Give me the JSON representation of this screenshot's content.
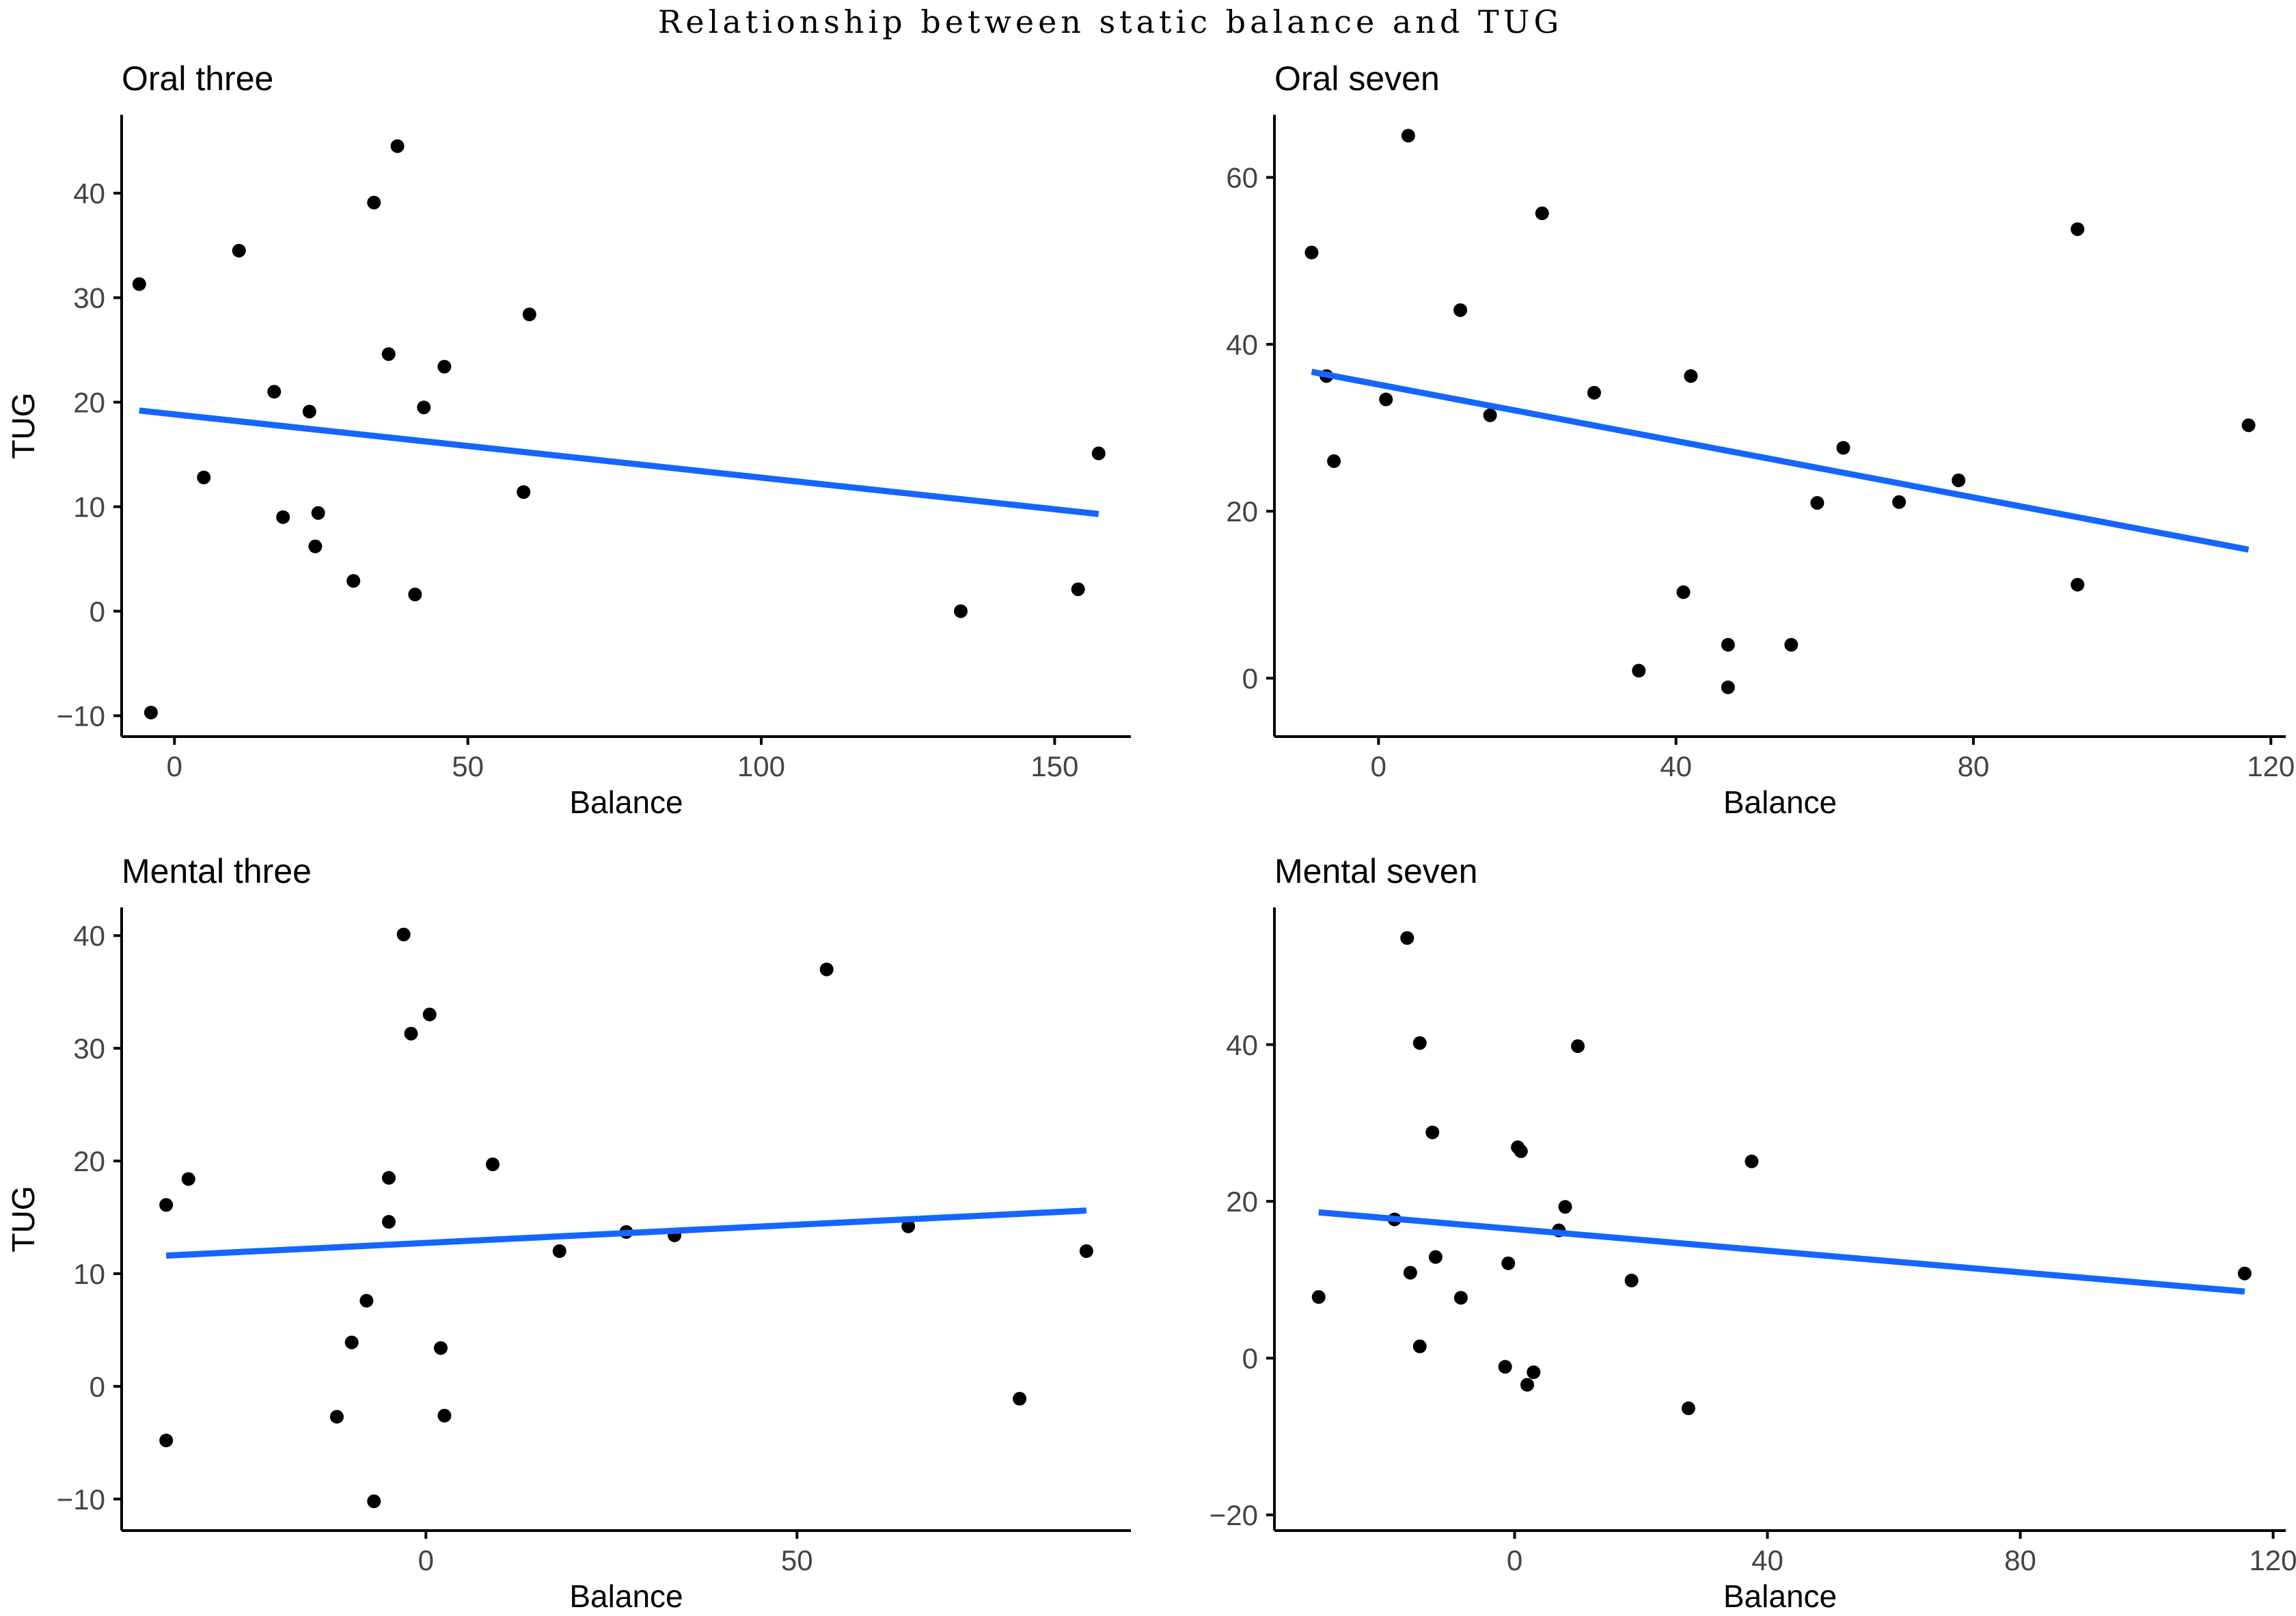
{
  "figure": {
    "title": "Relationship between static balance and TUG"
  },
  "styles": {
    "point_color": "#000000",
    "fit_line_color": "#1565FF",
    "axis_color": "#000000"
  },
  "chart_data": [
    {
      "type": "scatter",
      "title": "Oral three",
      "xlabel": "Balance",
      "ylabel": "TUG",
      "xlim": [
        -9,
        163
      ],
      "ylim": [
        -12,
        47.5
      ],
      "xticks": [
        0,
        50,
        100,
        150
      ],
      "yticks": [
        -10,
        0,
        10,
        20,
        30,
        40
      ],
      "grid": false,
      "points": [
        {
          "x": -6,
          "y": 31.3
        },
        {
          "x": -4,
          "y": -9.7
        },
        {
          "x": 5,
          "y": 12.8
        },
        {
          "x": 11,
          "y": 34.5
        },
        {
          "x": 17,
          "y": 21.0
        },
        {
          "x": 18.5,
          "y": 9.0
        },
        {
          "x": 23,
          "y": 19.1
        },
        {
          "x": 24,
          "y": 6.2
        },
        {
          "x": 24.5,
          "y": 9.4
        },
        {
          "x": 30.5,
          "y": 2.9
        },
        {
          "x": 34,
          "y": 39.1
        },
        {
          "x": 36.5,
          "y": 24.6
        },
        {
          "x": 38,
          "y": 44.5
        },
        {
          "x": 41,
          "y": 1.6
        },
        {
          "x": 42.5,
          "y": 19.5
        },
        {
          "x": 46,
          "y": 23.4
        },
        {
          "x": 59.5,
          "y": 11.4
        },
        {
          "x": 60.5,
          "y": 28.4
        },
        {
          "x": 134,
          "y": 0.0
        },
        {
          "x": 154,
          "y": 2.1
        },
        {
          "x": 157.5,
          "y": 15.1
        }
      ],
      "fit": {
        "x": [
          -6,
          157.5
        ],
        "y": [
          19.2,
          9.3
        ]
      }
    },
    {
      "type": "scatter",
      "title": "Oral seven",
      "xlabel": "Balance",
      "ylabel": "TUG",
      "xlim": [
        -14,
        122
      ],
      "ylim": [
        -7,
        67.5
      ],
      "xticks": [
        0,
        40,
        80,
        120
      ],
      "yticks": [
        0,
        20,
        40,
        60
      ],
      "grid": false,
      "points": [
        {
          "x": -9,
          "y": 51.0
        },
        {
          "x": -7,
          "y": 36.2
        },
        {
          "x": -6,
          "y": 26.0
        },
        {
          "x": 1,
          "y": 33.4
        },
        {
          "x": 4,
          "y": 65.0
        },
        {
          "x": 11,
          "y": 44.1
        },
        {
          "x": 15,
          "y": 31.5
        },
        {
          "x": 22,
          "y": 55.7
        },
        {
          "x": 29,
          "y": 34.2
        },
        {
          "x": 35,
          "y": 0.9
        },
        {
          "x": 41,
          "y": 10.3
        },
        {
          "x": 42,
          "y": 36.2
        },
        {
          "x": 47,
          "y": 4.0
        },
        {
          "x": 47,
          "y": -1.1
        },
        {
          "x": 55.5,
          "y": 4.0
        },
        {
          "x": 59,
          "y": 21.0
        },
        {
          "x": 62.5,
          "y": 27.6
        },
        {
          "x": 70,
          "y": 21.1
        },
        {
          "x": 78,
          "y": 23.7
        },
        {
          "x": 94,
          "y": 53.8
        },
        {
          "x": 94,
          "y": 11.2
        },
        {
          "x": 117,
          "y": 30.3
        }
      ],
      "fit": {
        "x": [
          -9,
          117
        ],
        "y": [
          36.7,
          15.4
        ]
      }
    },
    {
      "type": "scatter",
      "title": "Mental three",
      "xlabel": "Balance",
      "ylabel": "TUG",
      "xlim": [
        -41,
        95
      ],
      "ylim": [
        -12.8,
        42.5
      ],
      "xticks": [
        0,
        50
      ],
      "yticks": [
        -10,
        0,
        10,
        20,
        30,
        40
      ],
      "grid": false,
      "points": [
        {
          "x": -35,
          "y": -4.8
        },
        {
          "x": -35,
          "y": 16.1
        },
        {
          "x": -32,
          "y": 18.4
        },
        {
          "x": -12,
          "y": -2.7
        },
        {
          "x": -10,
          "y": 3.9
        },
        {
          "x": -8,
          "y": 7.6
        },
        {
          "x": -7,
          "y": -10.2
        },
        {
          "x": -5,
          "y": 18.5
        },
        {
          "x": -5,
          "y": 14.6
        },
        {
          "x": -3,
          "y": 40.1
        },
        {
          "x": -2,
          "y": 31.3
        },
        {
          "x": 0.5,
          "y": 33.0
        },
        {
          "x": 2,
          "y": 3.4
        },
        {
          "x": 2.5,
          "y": -2.6
        },
        {
          "x": 9,
          "y": 19.7
        },
        {
          "x": 18,
          "y": 12.0
        },
        {
          "x": 27,
          "y": 13.7
        },
        {
          "x": 33.5,
          "y": 13.4
        },
        {
          "x": 54,
          "y": 37.0
        },
        {
          "x": 65,
          "y": 14.2
        },
        {
          "x": 80,
          "y": -1.1
        },
        {
          "x": 89,
          "y": 12.0
        }
      ],
      "fit": {
        "x": [
          -35,
          89
        ],
        "y": [
          11.6,
          15.6
        ]
      }
    },
    {
      "type": "scatter",
      "title": "Mental seven",
      "xlabel": "Balance",
      "ylabel": "TUG",
      "xlim": [
        -38,
        122
      ],
      "ylim": [
        -22,
        57.5
      ],
      "xticks": [
        0,
        40,
        80,
        120
      ],
      "yticks": [
        -20,
        0,
        20,
        40
      ],
      "grid": false,
      "points": [
        {
          "x": -31,
          "y": 7.8
        },
        {
          "x": -19,
          "y": 17.7
        },
        {
          "x": -17,
          "y": 53.6
        },
        {
          "x": -16.5,
          "y": 10.9
        },
        {
          "x": -15,
          "y": 40.2
        },
        {
          "x": -15,
          "y": 1.5
        },
        {
          "x": -13,
          "y": 28.8
        },
        {
          "x": -12.5,
          "y": 12.9
        },
        {
          "x": -8.5,
          "y": 7.7
        },
        {
          "x": -1.5,
          "y": -1.1
        },
        {
          "x": -1,
          "y": 12.1
        },
        {
          "x": 0.5,
          "y": 26.9
        },
        {
          "x": 1,
          "y": 26.4
        },
        {
          "x": 2,
          "y": -3.4
        },
        {
          "x": 3,
          "y": -1.8
        },
        {
          "x": 7,
          "y": 16.3
        },
        {
          "x": 8,
          "y": 19.3
        },
        {
          "x": 10,
          "y": 39.8
        },
        {
          "x": 18.5,
          "y": 9.9
        },
        {
          "x": 27.5,
          "y": -6.4
        },
        {
          "x": 37.5,
          "y": 25.1
        },
        {
          "x": 115.5,
          "y": 10.8
        }
      ],
      "fit": {
        "x": [
          -31,
          115.5
        ],
        "y": [
          18.6,
          8.5
        ]
      }
    }
  ]
}
